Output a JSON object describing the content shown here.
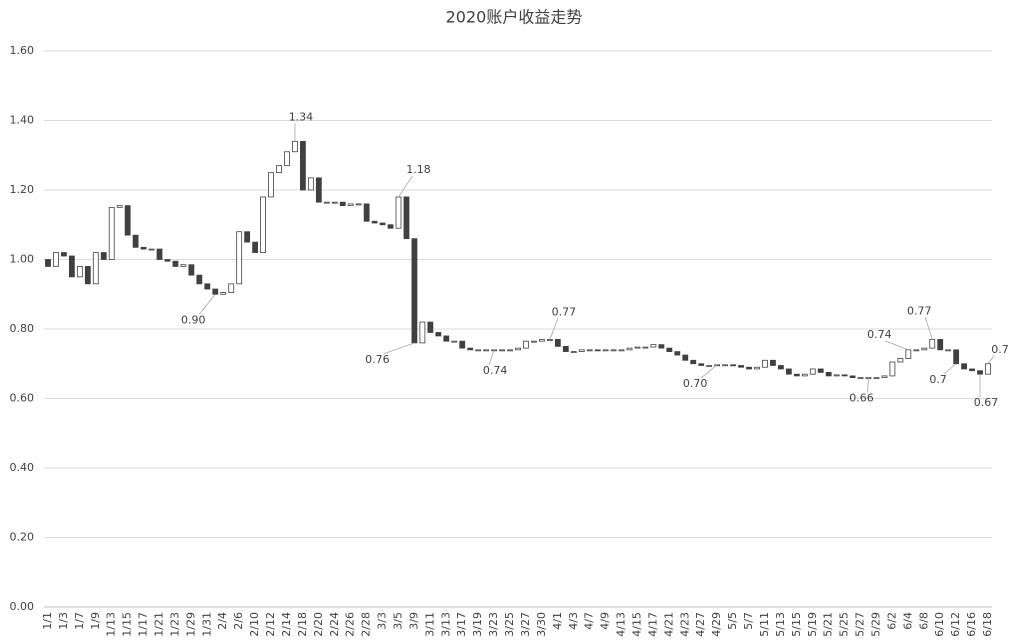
{
  "chart_data": {
    "type": "candlestick",
    "title": "2020账户收益走势",
    "categories": [
      "1/1",
      null,
      "1/3",
      null,
      "1/7",
      null,
      "1/9",
      null,
      "1/13",
      null,
      "1/15",
      null,
      "1/17",
      null,
      "1/21",
      null,
      "1/23",
      null,
      "1/29",
      null,
      "1/31",
      null,
      "2/4",
      null,
      "2/6",
      null,
      "2/10",
      null,
      "2/12",
      null,
      "2/14",
      null,
      "2/18",
      null,
      "2/20",
      null,
      "2/24",
      null,
      "2/26",
      null,
      "2/28",
      null,
      "3/3",
      null,
      "3/5",
      null,
      "3/9",
      null,
      "3/11",
      null,
      "3/13",
      null,
      "3/17",
      null,
      "3/19",
      null,
      "3/23",
      null,
      "3/25",
      null,
      "3/27",
      null,
      "3/30",
      null,
      "4/1",
      null,
      "4/3",
      null,
      "4/7",
      null,
      "4/9",
      null,
      "4/13",
      null,
      "4/15",
      null,
      "4/17",
      null,
      "4/21",
      null,
      "4/23",
      null,
      "4/27",
      null,
      "4/29",
      null,
      "5/5",
      null,
      "5/7",
      null,
      "5/11",
      null,
      "5/13",
      null,
      "5/15",
      null,
      "5/19",
      null,
      "5/21",
      null,
      "5/25",
      null,
      "5/27",
      null,
      "5/29",
      null,
      "6/2",
      null,
      "6/4",
      null,
      "6/8",
      null,
      "6/10",
      null,
      "6/12",
      null,
      "6/16",
      null,
      "6/18"
    ],
    "open": [
      1.0,
      0.98,
      1.02,
      1.01,
      0.95,
      0.98,
      0.93,
      1.02,
      1.0,
      1.15,
      1.155,
      1.07,
      1.035,
      1.03,
      1.03,
      1.0,
      0.995,
      0.98,
      0.985,
      0.955,
      0.93,
      0.915,
      0.9,
      0.905,
      0.93,
      1.08,
      1.05,
      1.02,
      1.18,
      1.25,
      1.27,
      1.31,
      1.34,
      1.2,
      1.235,
      1.165,
      1.165,
      1.165,
      1.155,
      1.16,
      1.16,
      1.11,
      1.105,
      1.1,
      1.09,
      1.18,
      1.06,
      0.76,
      0.82,
      0.79,
      0.78,
      0.765,
      0.765,
      0.745,
      0.74,
      0.74,
      0.74,
      0.74,
      0.74,
      0.74,
      0.745,
      0.765,
      0.765,
      0.77,
      0.77,
      0.75,
      0.735,
      0.735,
      0.74,
      0.74,
      0.738,
      0.74,
      0.74,
      0.74,
      0.745,
      0.748,
      0.748,
      0.755,
      0.745,
      0.735,
      0.725,
      0.71,
      0.7,
      0.695,
      0.695,
      0.697,
      0.697,
      0.695,
      0.69,
      0.685,
      0.69,
      0.71,
      0.695,
      0.685,
      0.67,
      0.665,
      0.67,
      0.685,
      0.675,
      0.665,
      0.668,
      0.665,
      0.66,
      0.66,
      0.66,
      0.66,
      0.665,
      0.705,
      0.715,
      0.74,
      0.74,
      0.745,
      0.77,
      0.74,
      0.74,
      0.7,
      0.685,
      0.68,
      0.67
    ],
    "close": [
      0.98,
      1.02,
      1.01,
      0.95,
      0.98,
      0.93,
      1.02,
      1.0,
      1.15,
      1.155,
      1.07,
      1.035,
      1.03,
      1.03,
      1.0,
      0.995,
      0.98,
      0.985,
      0.955,
      0.93,
      0.915,
      0.9,
      0.905,
      0.93,
      1.08,
      1.05,
      1.02,
      1.18,
      1.25,
      1.27,
      1.31,
      1.34,
      1.2,
      1.235,
      1.165,
      1.165,
      1.165,
      1.155,
      1.16,
      1.16,
      1.11,
      1.105,
      1.1,
      1.09,
      1.18,
      1.06,
      0.76,
      0.82,
      0.79,
      0.78,
      0.765,
      0.765,
      0.745,
      0.74,
      0.74,
      0.74,
      0.74,
      0.74,
      0.74,
      0.745,
      0.765,
      0.765,
      0.77,
      0.77,
      0.75,
      0.735,
      0.735,
      0.74,
      0.74,
      0.738,
      0.74,
      0.74,
      0.74,
      0.745,
      0.748,
      0.748,
      0.755,
      0.745,
      0.735,
      0.725,
      0.71,
      0.7,
      0.695,
      0.695,
      0.697,
      0.697,
      0.695,
      0.69,
      0.685,
      0.69,
      0.71,
      0.695,
      0.685,
      0.67,
      0.665,
      0.67,
      0.685,
      0.675,
      0.665,
      0.668,
      0.665,
      0.66,
      0.66,
      0.66,
      0.66,
      0.665,
      0.705,
      0.715,
      0.74,
      0.74,
      0.745,
      0.77,
      0.74,
      0.74,
      0.7,
      0.685,
      0.68,
      0.67,
      0.7
    ],
    "value_labels": [
      null,
      null,
      null,
      null,
      null,
      null,
      null,
      null,
      null,
      null,
      null,
      null,
      null,
      null,
      null,
      null,
      null,
      null,
      null,
      null,
      null,
      "0.90",
      null,
      null,
      null,
      null,
      null,
      null,
      null,
      null,
      null,
      "1.34",
      null,
      null,
      null,
      null,
      null,
      null,
      null,
      null,
      null,
      null,
      null,
      null,
      "1.18",
      null,
      "0.76",
      null,
      null,
      null,
      null,
      null,
      null,
      null,
      null,
      null,
      "0.74",
      null,
      null,
      null,
      null,
      null,
      null,
      "0.77",
      null,
      null,
      null,
      null,
      null,
      null,
      null,
      null,
      null,
      null,
      null,
      null,
      null,
      null,
      null,
      null,
      null,
      null,
      null,
      null,
      "0.70",
      null,
      null,
      null,
      null,
      null,
      null,
      null,
      null,
      null,
      null,
      null,
      null,
      null,
      null,
      null,
      null,
      null,
      null,
      "0.66",
      null,
      null,
      null,
      null,
      "0.74",
      null,
      null,
      "0.77",
      null,
      null,
      "0.7",
      null,
      null,
      "0.67",
      "0.7"
    ],
    "up_color": "#ffffff",
    "down_color": "#404040",
    "ylim": [
      0,
      1.6
    ],
    "yticks": [
      {
        "value": 0,
        "label": "0.00"
      },
      {
        "value": 0.2,
        "label": "0.20"
      },
      {
        "value": 0.4,
        "label": "0.40"
      },
      {
        "value": 0.6,
        "label": "0.60"
      },
      {
        "value": 0.8,
        "label": "0.80"
      },
      {
        "value": 1.0,
        "label": "1.00"
      },
      {
        "value": 1.2,
        "label": "1.20"
      },
      {
        "value": 1.4,
        "label": "1.40"
      },
      {
        "value": 1.6,
        "label": "1.60"
      }
    ],
    "grid": true
  }
}
